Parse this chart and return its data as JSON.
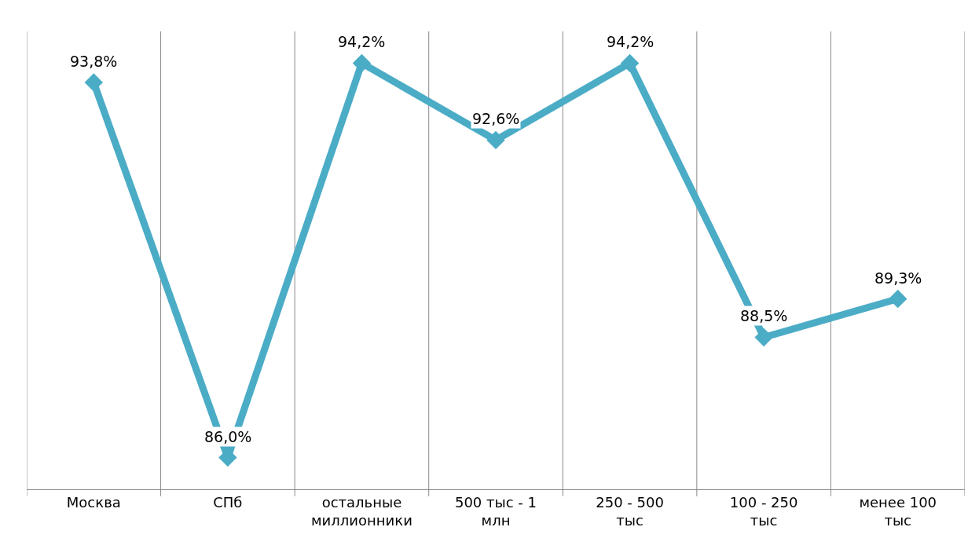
{
  "chart_data": {
    "type": "line",
    "categories": [
      "Москва",
      "СПб",
      "остальные миллионники",
      "500 тыс - 1 млн",
      "250 - 500 тыс",
      "100 - 250 тыс",
      "менее 100 тыс"
    ],
    "series": [
      {
        "color": "#4bacc6",
        "values": [
          93.8,
          86.0,
          94.2,
          92.6,
          94.2,
          88.5,
          89.3
        ],
        "value_labels": [
          "93,8%",
          "86,0%",
          "94,2%",
          "92,6%",
          "94,2%",
          "88,5%",
          "89,3%"
        ]
      }
    ],
    "grid": "x",
    "marker": "diamond",
    "line_style": "solid",
    "legend": false,
    "tick_labels": "x"
  }
}
